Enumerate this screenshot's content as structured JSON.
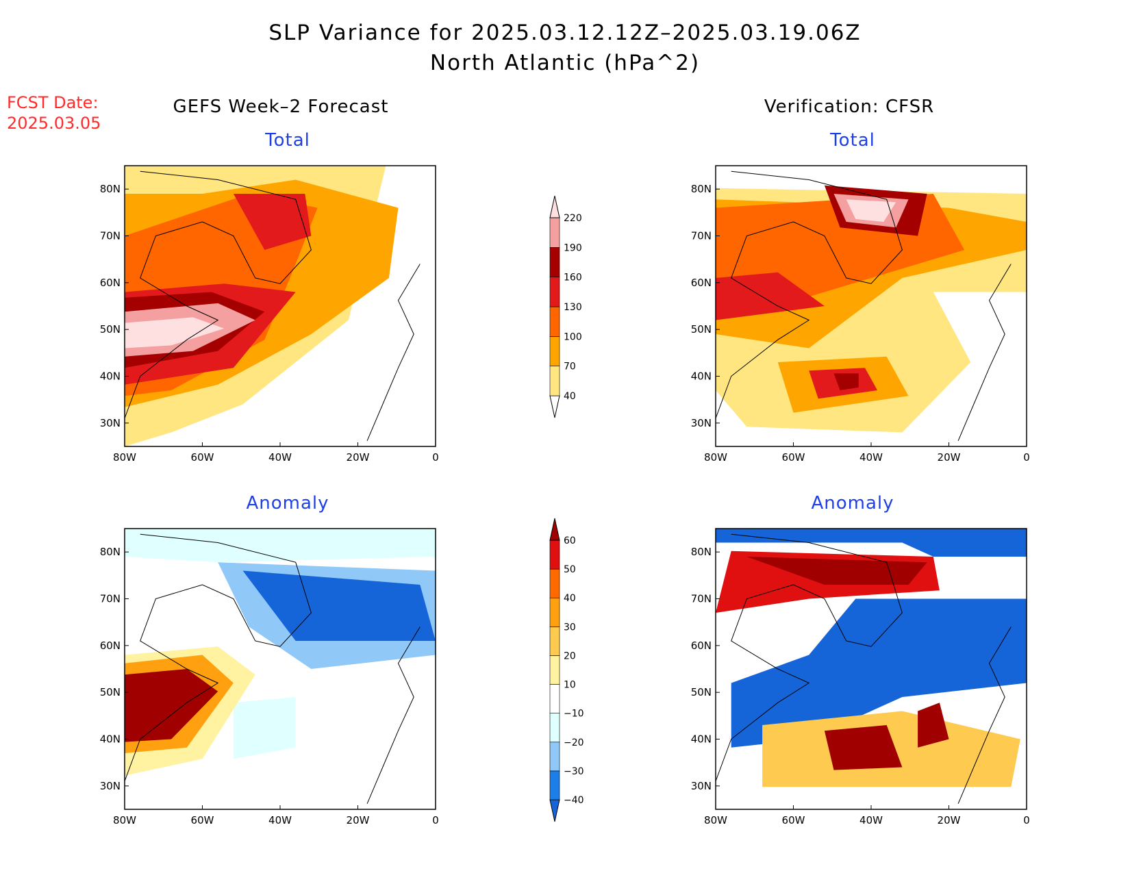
{
  "header": {
    "title": "SLP Variance for 2025.03.12.12Z–2025.03.19.06Z",
    "subtitle": "North Atlantic (hPa^2)",
    "fcst_label": "FCST Date:",
    "fcst_date": "2025.03.05"
  },
  "columns": {
    "left": "GEFS Week–2 Forecast",
    "right": "Verification: CFSR"
  },
  "chart_data": [
    {
      "type": "heatmap",
      "title": "Total",
      "column": "GEFS Week–2 Forecast",
      "x_tick_labels": [
        "80W",
        "60W",
        "40W",
        "20W",
        "0"
      ],
      "y_tick_labels": [
        "30N",
        "40N",
        "50N",
        "60N",
        "70N",
        "80N"
      ],
      "xlim": [
        -80,
        0
      ],
      "ylim": [
        25,
        85
      ],
      "levels": [
        40,
        70,
        100,
        130,
        160,
        190,
        220
      ],
      "colorbar_labels": [
        "40",
        "70",
        "100",
        "130",
        "160",
        "190",
        "220"
      ],
      "colors": [
        "#ffffff",
        "#ffe680",
        "#ffa500",
        "#ff6600",
        "#e31a1c",
        "#a50000",
        "#f4a0a0",
        "#ffe0e0"
      ]
    },
    {
      "type": "heatmap",
      "title": "Total",
      "column": "Verification: CFSR",
      "x_tick_labels": [
        "80W",
        "60W",
        "40W",
        "20W",
        "0"
      ],
      "y_tick_labels": [
        "30N",
        "40N",
        "50N",
        "60N",
        "70N",
        "80N"
      ],
      "xlim": [
        -80,
        0
      ],
      "ylim": [
        25,
        85
      ],
      "levels": [
        40,
        70,
        100,
        130,
        160,
        190,
        220
      ],
      "colors": [
        "#ffffff",
        "#ffe680",
        "#ffa500",
        "#ff6600",
        "#e31a1c",
        "#a50000",
        "#f4a0a0",
        "#ffe0e0"
      ]
    },
    {
      "type": "heatmap",
      "title": "Anomaly",
      "column": "GEFS Week–2 Forecast",
      "x_tick_labels": [
        "80W",
        "60W",
        "40W",
        "20W",
        "0"
      ],
      "y_tick_labels": [
        "30N",
        "40N",
        "50N",
        "60N",
        "70N",
        "80N"
      ],
      "xlim": [
        -80,
        0
      ],
      "ylim": [
        25,
        85
      ],
      "levels": [
        -40,
        -30,
        -20,
        -10,
        10,
        20,
        30,
        40,
        50,
        60
      ],
      "colorbar_labels": [
        "−40",
        "−30",
        "−20",
        "−10",
        "10",
        "20",
        "30",
        "40",
        "50",
        "60"
      ],
      "colors": [
        "#1565d8",
        "#1e7ee8",
        "#90c8f8",
        "#e0ffff",
        "#ffffff",
        "#fff2a0",
        "#ffca50",
        "#ffa010",
        "#ff6a00",
        "#e01010",
        "#a00000"
      ]
    },
    {
      "type": "heatmap",
      "title": "Anomaly",
      "column": "Verification: CFSR",
      "x_tick_labels": [
        "80W",
        "60W",
        "40W",
        "20W",
        "0"
      ],
      "y_tick_labels": [
        "30N",
        "40N",
        "50N",
        "60N",
        "70N",
        "80N"
      ],
      "xlim": [
        -80,
        0
      ],
      "ylim": [
        25,
        85
      ],
      "levels": [
        -40,
        -30,
        -20,
        -10,
        10,
        20,
        30,
        40,
        50,
        60
      ],
      "colors": [
        "#1565d8",
        "#1e7ee8",
        "#90c8f8",
        "#e0ffff",
        "#ffffff",
        "#fff2a0",
        "#ffca50",
        "#ffa010",
        "#ff6a00",
        "#e01010",
        "#a00000"
      ]
    }
  ]
}
